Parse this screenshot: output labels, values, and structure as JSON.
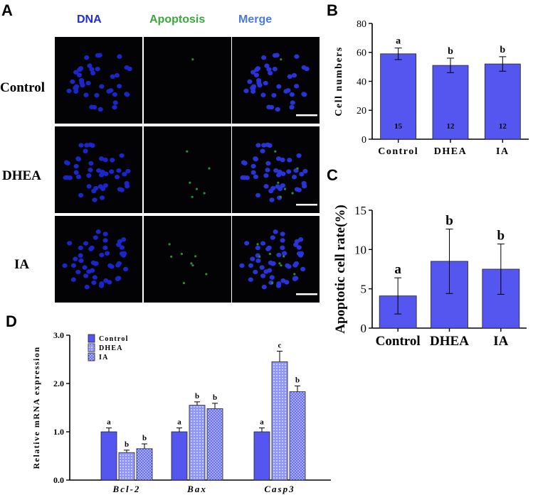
{
  "panel_labels": {
    "a": "A",
    "b": "B",
    "c": "C",
    "d": "D"
  },
  "micrograph": {
    "columns": [
      "DNA",
      "Apoptosis",
      "Merge"
    ],
    "column_colors": [
      "#1f2fd0",
      "#3aa83a",
      "#4a7ae0"
    ],
    "rows": [
      "Control",
      "DHEA",
      "IA"
    ]
  },
  "chart_data": [
    {
      "id": "B",
      "type": "bar",
      "categories": [
        "Control",
        "DHEA",
        "IA"
      ],
      "values": [
        59,
        51,
        52
      ],
      "errors": [
        4,
        5,
        5
      ],
      "letters": [
        "a",
        "b",
        "b"
      ],
      "inner_labels": [
        "15",
        "12",
        "12"
      ],
      "ylabel": "Cell numbers",
      "ylim": [
        0,
        80
      ],
      "yticks": [
        "0",
        "20",
        "40",
        "60",
        "80"
      ],
      "color": "#5555f0"
    },
    {
      "id": "C",
      "type": "bar",
      "categories": [
        "Control",
        "DHEA",
        "IA"
      ],
      "values": [
        4.1,
        8.5,
        7.5
      ],
      "errors": [
        2.3,
        4.1,
        3.2
      ],
      "letters": [
        "a",
        "b",
        "b"
      ],
      "ylabel": "Apoptotic cell rate(%)",
      "ylim": [
        0,
        15
      ],
      "yticks": [
        "0",
        "5",
        "10",
        "15"
      ],
      "color": "#5555f0"
    },
    {
      "id": "D",
      "type": "bar",
      "categories": [
        "Bcl-2",
        "Bax",
        "Casp3"
      ],
      "series": [
        {
          "name": "Control",
          "values": [
            1.0,
            1.0,
            1.0
          ],
          "errors": [
            0.08,
            0.08,
            0.08
          ],
          "letters": [
            "a",
            "a",
            "a"
          ]
        },
        {
          "name": "DHEA",
          "values": [
            0.57,
            1.55,
            2.45
          ],
          "errors": [
            0.05,
            0.07,
            0.22
          ],
          "letters": [
            "b",
            "b",
            "c"
          ]
        },
        {
          "name": "IA",
          "values": [
            0.65,
            1.48,
            1.83
          ],
          "errors": [
            0.1,
            0.11,
            0.12
          ],
          "letters": [
            "b",
            "b",
            "b"
          ]
        }
      ],
      "ylabel": "Relative mRNA expression",
      "ylim": [
        0,
        3
      ],
      "yticks": [
        "0.0",
        "1.0",
        "2.0",
        "3.0"
      ],
      "legend": "top-left",
      "color": "#5555f0"
    }
  ]
}
